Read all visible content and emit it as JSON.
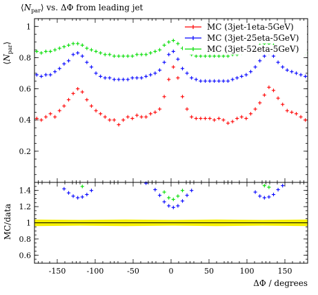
{
  "chart_data": [
    {
      "type": "scatter",
      "title": "⟨N_par⟩ vs. ΔΦ from leading jet",
      "title_parts": {
        "pre": "⟨",
        "sym": "N",
        "sub": "par",
        "post": "⟩ vs. ΔΦ from leading jet"
      },
      "ylabel": "⟨N_par⟩",
      "ylabel_parts": {
        "pre": "⟨",
        "sym": "N",
        "sub": "par",
        "post": "⟩"
      },
      "xlim": [
        -180,
        180
      ],
      "ylim": [
        0,
        1.05
      ],
      "yticks": [
        0.2,
        0.4,
        0.6,
        0.8,
        1
      ],
      "ytick_labels": [
        "0.2",
        "0.4",
        "0.6",
        "0.8",
        "1"
      ],
      "legend": {
        "position": "top-right"
      },
      "grid": false,
      "series": [
        {
          "name": "MC (3jet-1eta-5GeV)",
          "color": "#ff0000",
          "x": [
            -177,
            -171,
            -165,
            -159,
            -153,
            -147,
            -141,
            -135,
            -129,
            -123,
            -117,
            -111,
            -105,
            -99,
            -93,
            -87,
            -81,
            -75,
            -69,
            -63,
            -57,
            -51,
            -45,
            -39,
            -33,
            -27,
            -21,
            -15,
            -9,
            -3,
            3,
            9,
            15,
            21,
            27,
            33,
            39,
            45,
            51,
            57,
            63,
            69,
            75,
            81,
            87,
            93,
            99,
            105,
            111,
            117,
            123,
            129,
            135,
            141,
            147,
            153,
            159,
            165,
            171,
            177
          ],
          "y": [
            0.41,
            0.4,
            0.42,
            0.44,
            0.42,
            0.46,
            0.49,
            0.53,
            0.57,
            0.6,
            0.58,
            0.53,
            0.49,
            0.46,
            0.44,
            0.42,
            0.4,
            0.4,
            0.37,
            0.4,
            0.42,
            0.41,
            0.43,
            0.42,
            0.42,
            0.44,
            0.45,
            0.47,
            0.55,
            0.66,
            0.74,
            0.67,
            0.55,
            0.47,
            0.42,
            0.41,
            0.41,
            0.41,
            0.41,
            0.4,
            0.41,
            0.4,
            0.38,
            0.39,
            0.41,
            0.42,
            0.41,
            0.44,
            0.47,
            0.51,
            0.56,
            0.61,
            0.59,
            0.54,
            0.5,
            0.46,
            0.45,
            0.44,
            0.42,
            0.4
          ]
        },
        {
          "name": "MC (3jet-25eta-5GeV)",
          "color": "#0000ff",
          "x": [
            -177,
            -171,
            -165,
            -159,
            -153,
            -147,
            -141,
            -135,
            -129,
            -123,
            -117,
            -111,
            -105,
            -99,
            -93,
            -87,
            -81,
            -75,
            -69,
            -63,
            -57,
            -51,
            -45,
            -39,
            -33,
            -27,
            -21,
            -15,
            -9,
            -3,
            3,
            9,
            15,
            21,
            27,
            33,
            39,
            45,
            51,
            57,
            63,
            69,
            75,
            81,
            87,
            93,
            99,
            105,
            111,
            117,
            123,
            129,
            135,
            141,
            147,
            153,
            159,
            165,
            171,
            177
          ],
          "y": [
            0.69,
            0.68,
            0.69,
            0.69,
            0.71,
            0.73,
            0.76,
            0.78,
            0.82,
            0.83,
            0.81,
            0.77,
            0.74,
            0.7,
            0.68,
            0.67,
            0.67,
            0.66,
            0.66,
            0.66,
            0.66,
            0.67,
            0.67,
            0.67,
            0.68,
            0.69,
            0.7,
            0.72,
            0.77,
            0.82,
            0.84,
            0.79,
            0.73,
            0.7,
            0.67,
            0.66,
            0.65,
            0.65,
            0.65,
            0.65,
            0.65,
            0.65,
            0.65,
            0.66,
            0.67,
            0.68,
            0.69,
            0.71,
            0.74,
            0.78,
            0.81,
            0.83,
            0.81,
            0.77,
            0.74,
            0.72,
            0.71,
            0.7,
            0.69,
            0.68
          ]
        },
        {
          "name": "MC (3jet-52eta-5GeV)",
          "color": "#00dd00",
          "x": [
            -177,
            -171,
            -165,
            -159,
            -153,
            -147,
            -141,
            -135,
            -129,
            -123,
            -117,
            -111,
            -105,
            -99,
            -93,
            -87,
            -81,
            -75,
            -69,
            -63,
            -57,
            -51,
            -45,
            -39,
            -33,
            -27,
            -21,
            -15,
            -9,
            -3,
            3,
            9,
            15,
            21,
            27,
            33,
            39,
            45,
            51,
            57,
            63,
            69,
            75,
            81,
            87,
            93,
            99,
            105,
            111,
            117,
            123,
            129,
            135,
            141,
            147,
            153,
            159,
            165,
            171,
            177
          ],
          "y": [
            0.84,
            0.83,
            0.84,
            0.84,
            0.85,
            0.86,
            0.87,
            0.88,
            0.89,
            0.89,
            0.88,
            0.86,
            0.85,
            0.84,
            0.83,
            0.82,
            0.82,
            0.81,
            0.81,
            0.81,
            0.81,
            0.81,
            0.82,
            0.82,
            0.82,
            0.83,
            0.84,
            0.85,
            0.88,
            0.9,
            0.91,
            0.89,
            0.86,
            0.84,
            0.82,
            0.81,
            0.81,
            0.81,
            0.81,
            0.81,
            0.81,
            0.81,
            0.81,
            0.82,
            0.82,
            0.83,
            0.84,
            0.85,
            0.86,
            0.88,
            0.89,
            0.89,
            0.88,
            0.86,
            0.85,
            0.84,
            0.84,
            0.84,
            0.84,
            0.83
          ]
        }
      ]
    },
    {
      "type": "scatter",
      "xlabel": "ΔΦ / degrees",
      "ylabel": "MC/data",
      "xlim": [
        -180,
        180
      ],
      "ylim": [
        0.5,
        1.5
      ],
      "xticks": [
        -150,
        -100,
        -50,
        0,
        50,
        100,
        150
      ],
      "xtick_labels": [
        "-150",
        "-100",
        "-50",
        "0",
        "50",
        "100",
        "150"
      ],
      "yticks": [
        0.6,
        0.8,
        1,
        1.2,
        1.4
      ],
      "ytick_labels": [
        "0.6",
        "0.8",
        "1",
        "1.2",
        "1.4"
      ],
      "reference_line": 1.0,
      "data_uncertainty_band": {
        "color": "#f5ef00",
        "x": [
          -180,
          -120,
          -60,
          0,
          60,
          120,
          180
        ],
        "lo": [
          0.96,
          0.965,
          0.96,
          0.965,
          0.96,
          0.965,
          0.96
        ],
        "hi": [
          1.04,
          1.035,
          1.04,
          1.035,
          1.04,
          1.035,
          1.04
        ]
      },
      "series": [
        {
          "name": "MC (3jet-1eta-5GeV)",
          "color": "#ff0000",
          "x": [],
          "y": []
        },
        {
          "name": "MC (3jet-25eta-5GeV)",
          "color": "#0000ff",
          "x": [
            -141,
            -135,
            -129,
            -123,
            -117,
            -111,
            -105,
            -33,
            -21,
            -15,
            -9,
            -3,
            3,
            9,
            15,
            21,
            27,
            111,
            117,
            123,
            129,
            135,
            141,
            147
          ],
          "y": [
            1.42,
            1.37,
            1.33,
            1.31,
            1.32,
            1.35,
            1.4,
            1.49,
            1.41,
            1.34,
            1.26,
            1.21,
            1.19,
            1.21,
            1.27,
            1.34,
            1.4,
            1.38,
            1.33,
            1.31,
            1.32,
            1.35,
            1.41,
            1.46
          ]
        },
        {
          "name": "MC (3jet-52eta-5GeV)",
          "color": "#00dd00",
          "x": [
            -117,
            -9,
            -3,
            3,
            9,
            15,
            123,
            129
          ],
          "y": [
            1.45,
            1.38,
            1.31,
            1.29,
            1.33,
            1.4,
            1.46,
            1.44
          ]
        }
      ]
    }
  ]
}
